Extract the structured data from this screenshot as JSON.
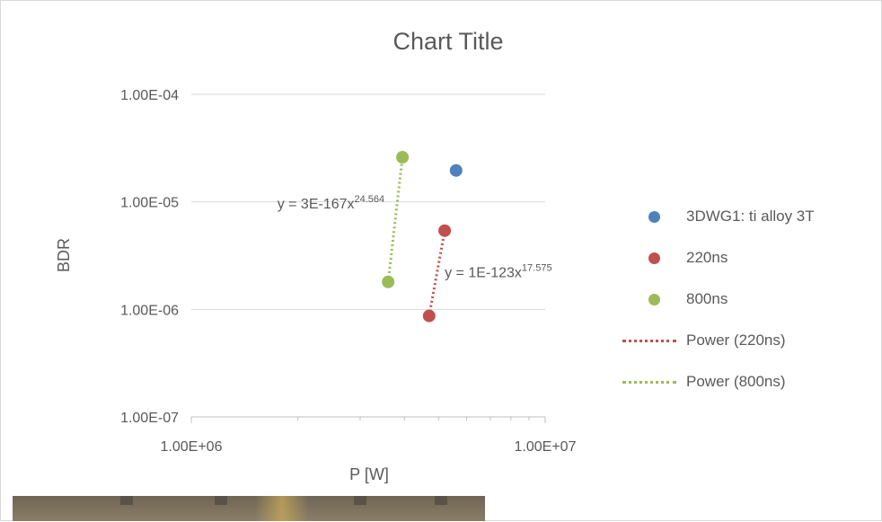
{
  "chart_data": {
    "type": "scatter",
    "title": "Chart Title",
    "xlabel": "P [W]",
    "ylabel": "BDR",
    "x_scale": "log",
    "y_scale": "log",
    "xlim": [
      1000000,
      10000000
    ],
    "ylim": [
      1e-07,
      0.0001
    ],
    "x_tick_labels": [
      "1.00E+06",
      "1.00E+07"
    ],
    "y_tick_labels": [
      "1.00E-07",
      "1.00E-06",
      "1.00E-05",
      "1.00E-04"
    ],
    "grid": "horizontal major",
    "legend_position": "right",
    "series": [
      {
        "name": "3DWG1: ti alloy 3T",
        "color": "#4f81bd",
        "points": [
          [
            5600000,
            1.96e-05
          ]
        ]
      },
      {
        "name": "220ns",
        "color": "#c0504d",
        "points": [
          [
            4700000,
            8.7e-07
          ],
          [
            5200000,
            5.4e-06
          ]
        ]
      },
      {
        "name": "800ns",
        "color": "#9bbb59",
        "points": [
          [
            3600000,
            1.8e-06
          ],
          [
            3950000,
            2.6e-05
          ]
        ]
      }
    ],
    "trendlines": [
      {
        "name": "Power (220ns)",
        "color": "#c0504d",
        "style": "dotted",
        "equation_base": "y = 1E-123x",
        "equation_exp": "17.575"
      },
      {
        "name": "Power (800ns)",
        "color": "#9bbb59",
        "style": "dotted",
        "equation_base": "y = 3E-167x",
        "equation_exp": "24.564"
      }
    ]
  },
  "legend": {
    "items": [
      {
        "label": "3DWG1: ti alloy 3T",
        "kind": "marker",
        "color": "#4f81bd"
      },
      {
        "label": "220ns",
        "kind": "marker",
        "color": "#c0504d"
      },
      {
        "label": "800ns",
        "kind": "marker",
        "color": "#9bbb59"
      },
      {
        "label": "Power (220ns)",
        "kind": "line",
        "color": "#c0504d"
      },
      {
        "label": "Power (800ns)",
        "kind": "line",
        "color": "#9bbb59"
      }
    ]
  }
}
